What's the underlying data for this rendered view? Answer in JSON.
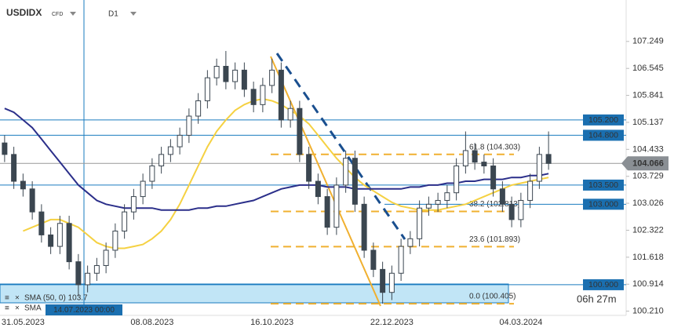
{
  "chart_data": {
    "type": "candlestick",
    "title": "USDIDX",
    "instrument_type": "CFD",
    "timeframe": "D1",
    "categories": [
      null,
      null,
      "31.05.2023",
      null,
      null,
      null,
      null,
      null,
      null,
      null,
      null,
      null,
      null,
      null,
      null,
      null,
      "08.08.2023",
      null,
      null,
      null,
      null,
      null,
      null,
      null,
      null,
      null,
      null,
      null,
      null,
      "16.10.2023",
      null,
      null,
      null,
      null,
      null,
      null,
      null,
      null,
      null,
      null,
      null,
      null,
      "22.12.2023",
      null,
      null,
      null,
      null,
      null,
      null,
      null,
      null,
      null,
      null,
      null,
      null,
      null,
      "04.03.2024",
      null,
      null,
      null
    ],
    "open": [
      104.6,
      104.3,
      103.6,
      103.4,
      102.8,
      102.2,
      101.9,
      102.5,
      101.5,
      100.9,
      101.2,
      101.4,
      101.8,
      102.3,
      102.8,
      103.2,
      103.6,
      104.0,
      104.3,
      104.5,
      104.8,
      105.3,
      105.7,
      106.3,
      106.6,
      106.2,
      106.5,
      106.0,
      105.6,
      106.1,
      106.5,
      105.2,
      105.5,
      104.3,
      103.6,
      103.2,
      102.4,
      103.5,
      104.2,
      103.0,
      101.8,
      101.3,
      100.7,
      101.2,
      101.9,
      102.1,
      102.9,
      103.0,
      103.1,
      103.3,
      104.0,
      104.4,
      104.1,
      104.0,
      103.4,
      103.0,
      102.6,
      103.1,
      103.6,
      104.3
    ],
    "high": [
      104.8,
      104.5,
      103.8,
      103.6,
      103.0,
      102.4,
      102.7,
      102.7,
      101.7,
      101.4,
      101.6,
      102.0,
      102.5,
      103.0,
      103.4,
      103.8,
      104.2,
      104.5,
      104.7,
      105.0,
      105.5,
      105.9,
      106.5,
      106.8,
      107.0,
      106.7,
      106.7,
      106.2,
      106.3,
      106.8,
      106.7,
      105.7,
      105.7,
      104.5,
      103.8,
      103.4,
      103.7,
      104.4,
      104.4,
      103.2,
      102.0,
      101.5,
      101.4,
      102.1,
      102.3,
      103.1,
      103.2,
      103.3,
      103.5,
      104.2,
      104.9,
      104.6,
      104.3,
      104.2,
      103.6,
      103.2,
      103.3,
      103.8,
      104.5,
      104.9
    ],
    "low": [
      104.1,
      103.4,
      103.2,
      102.6,
      102.0,
      101.7,
      101.7,
      101.3,
      100.6,
      100.7,
      101.0,
      101.2,
      101.6,
      102.1,
      102.6,
      103.0,
      103.4,
      103.8,
      104.1,
      104.3,
      104.6,
      105.1,
      105.5,
      106.1,
      106.0,
      106.0,
      105.8,
      105.4,
      105.4,
      105.9,
      105.0,
      105.0,
      104.1,
      103.4,
      103.0,
      102.2,
      102.2,
      103.3,
      102.8,
      101.6,
      101.1,
      100.405,
      100.5,
      101.0,
      101.7,
      101.9,
      102.7,
      102.8,
      102.9,
      103.1,
      103.8,
      103.9,
      103.8,
      103.2,
      102.8,
      102.4,
      102.4,
      102.9,
      103.4,
      103.9
    ],
    "close": [
      104.3,
      103.6,
      103.4,
      102.8,
      102.2,
      101.9,
      102.5,
      101.5,
      100.9,
      101.2,
      101.4,
      101.8,
      102.3,
      102.8,
      103.2,
      103.6,
      104.0,
      104.3,
      104.5,
      104.8,
      105.3,
      105.7,
      106.3,
      106.6,
      106.2,
      106.5,
      106.0,
      105.6,
      106.1,
      106.5,
      105.2,
      105.5,
      104.3,
      103.6,
      103.2,
      102.4,
      103.5,
      104.2,
      103.0,
      101.8,
      101.3,
      100.7,
      101.2,
      101.9,
      102.1,
      102.9,
      103.0,
      103.1,
      103.3,
      104.0,
      104.4,
      104.1,
      104.0,
      103.4,
      103.0,
      102.6,
      103.1,
      103.6,
      104.3,
      104.066
    ],
    "candle_color": "#3b4650",
    "series": [
      {
        "name": "SMA (50, 0) 103.7",
        "color": "#f5d142",
        "values": [
          null,
          null,
          102.3,
          102.4,
          102.5,
          102.6,
          102.6,
          102.5,
          102.4,
          102.2,
          102.0,
          101.9,
          101.85,
          101.85,
          101.9,
          101.95,
          102.1,
          102.3,
          102.6,
          103.0,
          103.5,
          104.0,
          104.5,
          104.9,
          105.2,
          105.45,
          105.6,
          105.7,
          105.75,
          105.7,
          105.6,
          105.45,
          105.3,
          105.1,
          104.8,
          104.5,
          104.2,
          103.95,
          103.7,
          103.5,
          103.35,
          103.2,
          103.05,
          102.95,
          102.9,
          102.85,
          102.85,
          102.85,
          102.9,
          102.95,
          103.0,
          103.1,
          103.2,
          103.3,
          103.4,
          103.5,
          103.55,
          103.6,
          103.65,
          103.7
        ]
      },
      {
        "name": "SMA",
        "color": "#2b2f8a",
        "values": [
          105.5,
          105.4,
          105.2,
          105.0,
          104.7,
          104.4,
          104.1,
          103.8,
          103.5,
          103.3,
          103.1,
          103.0,
          102.95,
          102.9,
          102.9,
          102.9,
          102.9,
          102.85,
          102.85,
          102.85,
          102.85,
          102.9,
          102.9,
          102.95,
          102.95,
          103.0,
          103.05,
          103.1,
          103.2,
          103.3,
          103.4,
          103.45,
          103.5,
          103.5,
          103.5,
          103.45,
          103.45,
          103.45,
          103.4,
          103.4,
          103.4,
          103.4,
          103.4,
          103.4,
          103.45,
          103.45,
          103.5,
          103.5,
          103.55,
          103.55,
          103.6,
          103.6,
          103.65,
          103.65,
          103.65,
          103.7,
          103.7,
          103.75,
          103.75,
          103.8
        ]
      }
    ],
    "ylim": [
      100.1,
      108.33
    ],
    "yticks": [
      107.249,
      106.545,
      105.841,
      105.137,
      104.433,
      103.729,
      103.026,
      102.322,
      101.618,
      100.914,
      {
        "value": 100.21,
        "label": "100.210"
      }
    ],
    "levels": [
      {
        "value": 105.2,
        "label": "105.200"
      },
      {
        "value": 104.8,
        "label": "104.800"
      },
      {
        "value": 103.5,
        "label": "103.500"
      },
      {
        "value": 103,
        "label": "103.000"
      },
      {
        "value": 100.9,
        "label": "100.900"
      }
    ],
    "fib_levels": [
      {
        "value": 104.303,
        "label": "61.8 (104.303)"
      },
      {
        "value": 102.813,
        "label": "38.2 (102.813)"
      },
      {
        "value": 101.893,
        "label": "23.6 (101.893)"
      },
      {
        "value": 100.405,
        "label": "0.0 (100.405)"
      }
    ],
    "current_price": {
      "value": 104.066,
      "label": "104.066"
    },
    "crosshair_label": "14.07.2023 00:00",
    "countdown": "06h 27m"
  }
}
